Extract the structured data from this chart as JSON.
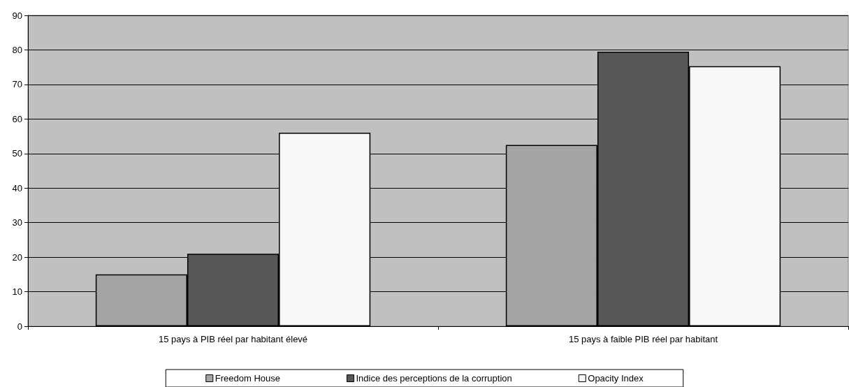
{
  "chart_data": {
    "type": "bar",
    "categories": [
      "15 pays à PIB réel par habitant élevé",
      "15 pays à faible PIB réel par habitant"
    ],
    "series": [
      {
        "name": "Freedom House",
        "color": "#a4a4a4",
        "values": [
          15,
          52.5
        ]
      },
      {
        "name": "Indice des perceptions de la corruption",
        "color": "#575757",
        "values": [
          21,
          79.5
        ]
      },
      {
        "name": "Opacity Index",
        "color": "#f8f8f8",
        "values": [
          56,
          75.3
        ]
      }
    ],
    "ylim": [
      0,
      90
    ],
    "yticks": [
      0,
      10,
      20,
      30,
      40,
      50,
      60,
      70,
      80,
      90
    ],
    "grid": "y",
    "legend": "bottom"
  }
}
